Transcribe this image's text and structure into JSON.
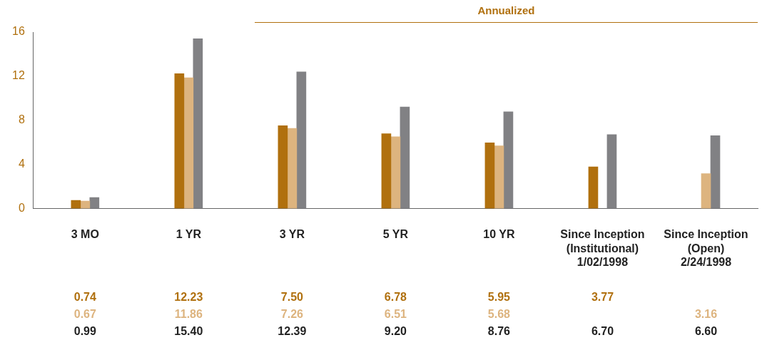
{
  "chart_data": {
    "type": "bar",
    "categories": [
      "3 MO",
      "1 YR",
      "3 YR",
      "5 YR",
      "10 YR",
      "Since Inception\n(Institutional)\n1/02/1998",
      "Since Inception\n(Open)\n2/24/1998"
    ],
    "series": [
      {
        "color": "#b0700e",
        "values": [
          0.74,
          12.23,
          7.5,
          6.78,
          5.95,
          3.77,
          null
        ],
        "value_labels": [
          "0.74",
          "12.23",
          "7.50",
          "6.78",
          "5.95",
          "3.77",
          null
        ]
      },
      {
        "color": "#ddb47f",
        "values": [
          0.67,
          11.86,
          7.26,
          6.51,
          5.68,
          null,
          3.16
        ],
        "value_labels": [
          "0.67",
          "11.86",
          "7.26",
          "6.51",
          "5.68",
          null,
          "3.16"
        ]
      },
      {
        "color": "#818184",
        "values": [
          0.99,
          15.4,
          12.39,
          9.2,
          8.76,
          6.7,
          6.6
        ],
        "value_labels": [
          "0.99",
          "15.40",
          "12.39",
          "9.20",
          "8.76",
          "6.70",
          "6.60"
        ]
      }
    ],
    "ylim": [
      0,
      16
    ],
    "yticks": [
      0,
      4,
      8,
      12,
      16
    ],
    "grid": false,
    "legend": false,
    "annotations": [
      "Annualized"
    ]
  }
}
